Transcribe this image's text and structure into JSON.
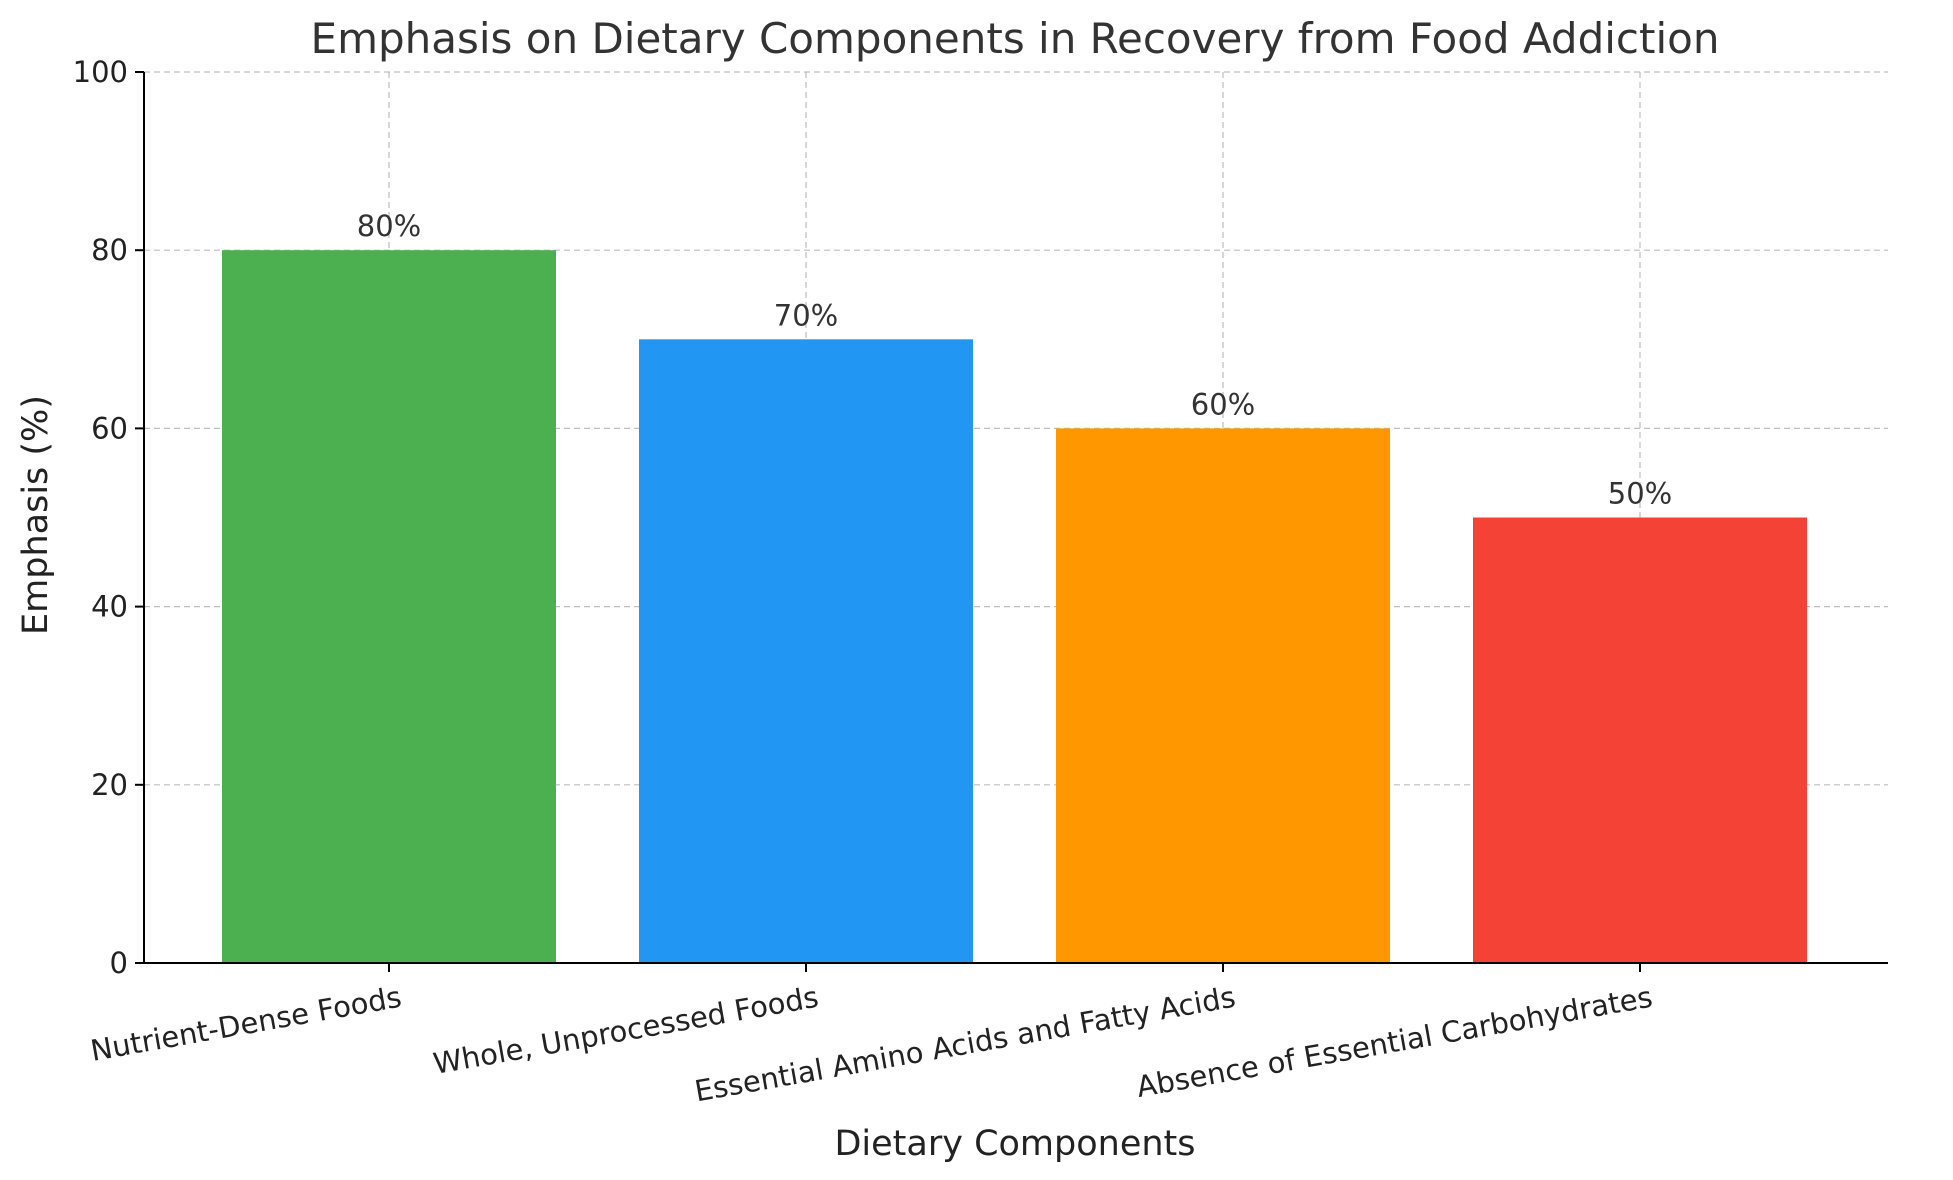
{
  "chart_data": {
    "type": "bar",
    "title": "Emphasis on Dietary Components in Recovery from Food Addiction",
    "xlabel": "Dietary Components",
    "ylabel": "Emphasis (%)",
    "categories": [
      "Nutrient-Dense Foods",
      "Whole, Unprocessed Foods",
      "Essential Amino Acids and Fatty Acids",
      "Absence of Essential Carbohydrates"
    ],
    "values": [
      80,
      70,
      60,
      50
    ],
    "data_labels": [
      "80%",
      "70%",
      "60%",
      "50%"
    ],
    "colors": [
      "#4caf50",
      "#2196f3",
      "#ff9800",
      "#f44336"
    ],
    "ylim": [
      0,
      100
    ],
    "yticks": [
      0,
      20,
      40,
      60,
      80,
      100
    ],
    "grid": true,
    "x_tick_rotation_deg": 10
  }
}
